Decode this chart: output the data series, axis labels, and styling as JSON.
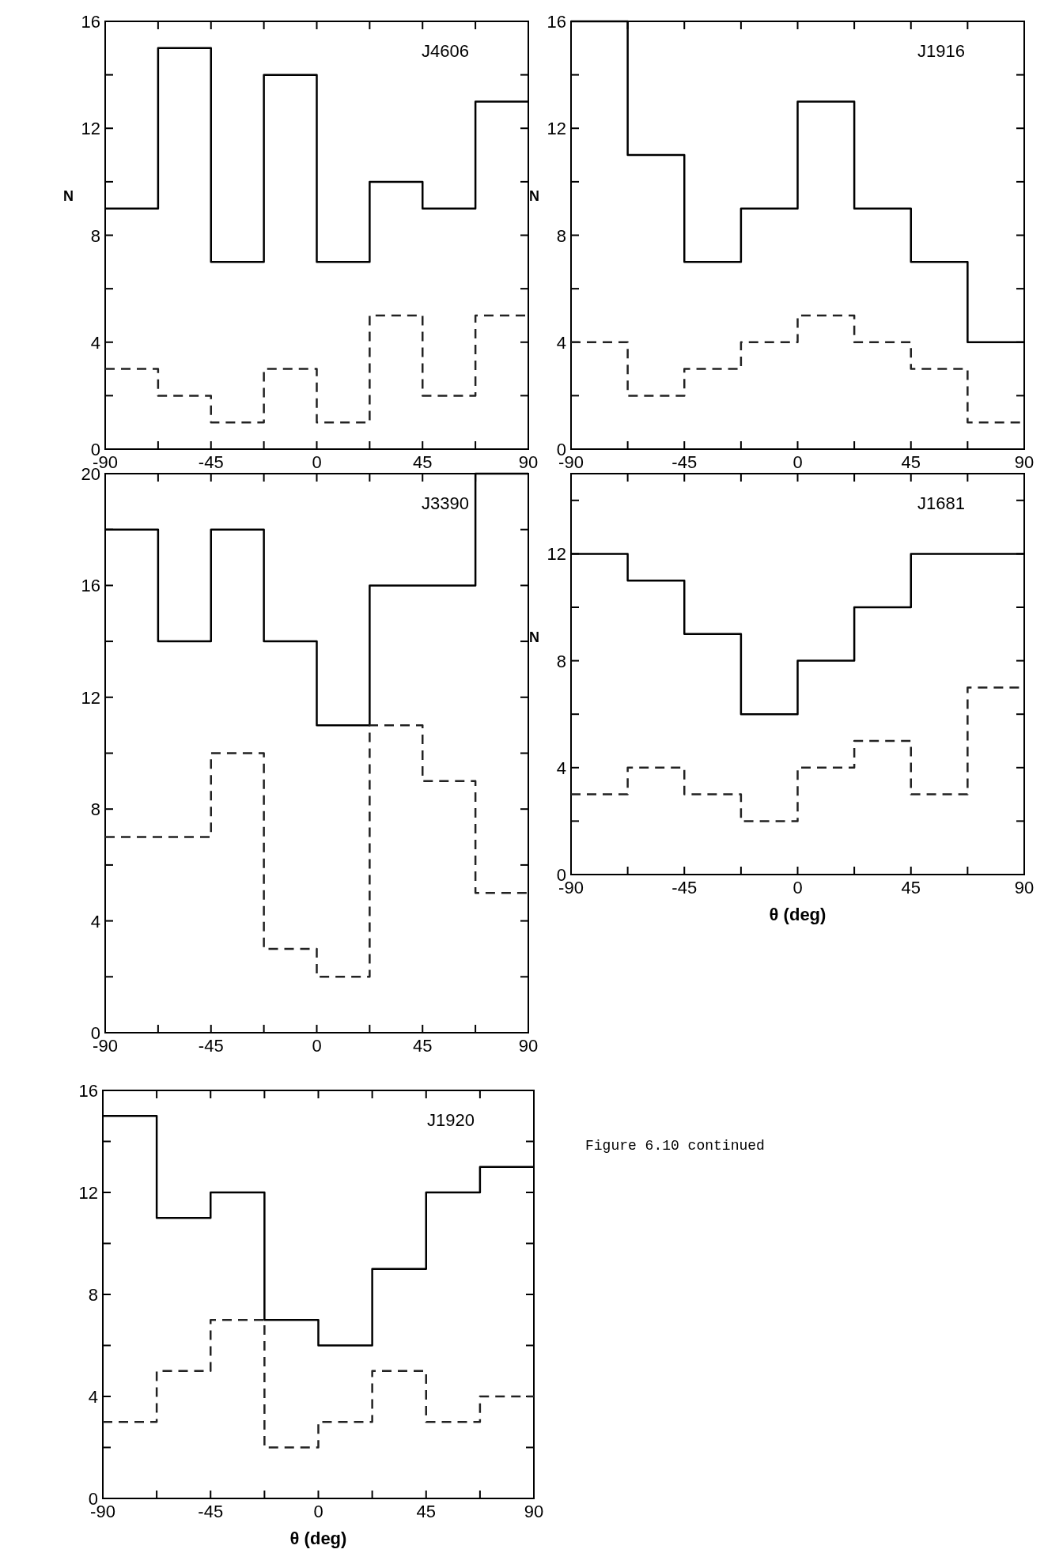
{
  "chart_data": [
    {
      "type": "histogram",
      "title": "J4606",
      "ylabel": "N",
      "bins": [
        -90,
        -67.5,
        -45,
        -22.5,
        0,
        22.5,
        45,
        67.5,
        90
      ],
      "xlim": [
        -90,
        90
      ],
      "ylim": [
        0,
        16
      ],
      "xticks": [
        -90,
        {
          "value": -67.5,
          "label": null
        },
        -45,
        {
          "value": -22.5,
          "label": null
        },
        0,
        {
          "value": 22.5,
          "label": null
        },
        45,
        {
          "value": 67.5,
          "label": null
        },
        90
      ],
      "yticks": [
        0,
        {
          "value": 2,
          "label": null
        },
        4,
        {
          "value": 6,
          "label": null
        },
        8,
        {
          "value": 10,
          "label": null
        },
        12,
        {
          "value": 14,
          "label": null
        },
        16
      ],
      "grid": false,
      "series": [
        {
          "color": "#000000",
          "line_style": "solid",
          "values": [
            9,
            15,
            7,
            14,
            7,
            10,
            9,
            13
          ]
        },
        {
          "color": "#222222",
          "line_style": "dashed",
          "values": [
            3,
            2,
            1,
            3,
            1,
            5,
            2,
            5
          ]
        }
      ]
    },
    {
      "type": "histogram",
      "title": "J1916",
      "ylabel": "N",
      "bins": [
        -90,
        -67.5,
        -45,
        -22.5,
        0,
        22.5,
        45,
        67.5,
        90
      ],
      "xlim": [
        -90,
        90
      ],
      "ylim": [
        0,
        16
      ],
      "xticks": [
        -90,
        {
          "value": -67.5,
          "label": null
        },
        -45,
        {
          "value": -22.5,
          "label": null
        },
        0,
        {
          "value": 22.5,
          "label": null
        },
        45,
        {
          "value": 67.5,
          "label": null
        },
        90
      ],
      "yticks": [
        0,
        {
          "value": 2,
          "label": null
        },
        4,
        {
          "value": 6,
          "label": null
        },
        8,
        {
          "value": 10,
          "label": null
        },
        12,
        {
          "value": 14,
          "label": null
        },
        16
      ],
      "grid": false,
      "series": [
        {
          "color": "#000000",
          "line_style": "solid",
          "values": [
            16,
            11,
            7,
            9,
            13,
            9,
            7,
            4
          ]
        },
        {
          "color": "#222222",
          "line_style": "dashed",
          "values": [
            4,
            2,
            3,
            4,
            5,
            4,
            3,
            1
          ]
        }
      ]
    },
    {
      "type": "histogram",
      "title": "J3390",
      "bins": [
        -90,
        -67.5,
        -45,
        -22.5,
        0,
        22.5,
        45,
        67.5,
        90
      ],
      "xlim": [
        -90,
        90
      ],
      "ylim": [
        0,
        20
      ],
      "xticks": [
        -90,
        {
          "value": -67.5,
          "label": null
        },
        -45,
        {
          "value": -22.5,
          "label": null
        },
        0,
        {
          "value": 22.5,
          "label": null
        },
        45,
        {
          "value": 67.5,
          "label": null
        },
        90
      ],
      "yticks": [
        0,
        {
          "value": 2,
          "label": null
        },
        4,
        {
          "value": 6,
          "label": null
        },
        8,
        {
          "value": 10,
          "label": null
        },
        12,
        {
          "value": 14,
          "label": null
        },
        16,
        {
          "value": 18,
          "label": null
        },
        20
      ],
      "grid": false,
      "series": [
        {
          "color": "#000000",
          "line_style": "solid",
          "values": [
            18,
            14,
            18,
            14,
            11,
            16,
            16,
            20
          ]
        },
        {
          "color": "#222222",
          "line_style": "dashed",
          "values": [
            7,
            7,
            10,
            3,
            2,
            11,
            9,
            5
          ]
        }
      ]
    },
    {
      "type": "histogram",
      "title": "J1681",
      "ylabel": "N",
      "xlabel": "θ (deg)",
      "bins": [
        -90,
        -67.5,
        -45,
        -22.5,
        0,
        22.5,
        45,
        67.5,
        90
      ],
      "xlim": [
        -90,
        90
      ],
      "ylim": [
        0,
        15
      ],
      "xticks": [
        -90,
        {
          "value": -67.5,
          "label": null
        },
        -45,
        {
          "value": -22.5,
          "label": null
        },
        0,
        {
          "value": 22.5,
          "label": null
        },
        45,
        {
          "value": 67.5,
          "label": null
        },
        90
      ],
      "yticks": [
        0,
        {
          "value": 2,
          "label": null
        },
        4,
        {
          "value": 6,
          "label": null
        },
        8,
        {
          "value": 10,
          "label": null
        },
        12,
        {
          "value": 14,
          "label": null
        }
      ],
      "grid": false,
      "series": [
        {
          "color": "#000000",
          "line_style": "solid",
          "values": [
            12,
            11,
            9,
            6,
            8,
            10,
            12,
            12
          ]
        },
        {
          "color": "#222222",
          "line_style": "dashed",
          "values": [
            3,
            4,
            3,
            2,
            4,
            5,
            3,
            7
          ]
        }
      ]
    },
    {
      "type": "histogram",
      "title": "J1920",
      "xlabel": "θ (deg)",
      "annotations": [
        "Figure 6.10 continued"
      ],
      "bins": [
        -90,
        -67.5,
        -45,
        -22.5,
        0,
        22.5,
        45,
        67.5,
        90
      ],
      "xlim": [
        -90,
        90
      ],
      "ylim": [
        0,
        16
      ],
      "xticks": [
        -90,
        {
          "value": -67.5,
          "label": null
        },
        -45,
        {
          "value": -22.5,
          "label": null
        },
        0,
        {
          "value": 22.5,
          "label": null
        },
        45,
        {
          "value": 67.5,
          "label": null
        },
        90
      ],
      "yticks": [
        0,
        {
          "value": 2,
          "label": null
        },
        4,
        {
          "value": 6,
          "label": null
        },
        8,
        {
          "value": 10,
          "label": null
        },
        12,
        {
          "value": 14,
          "label": null
        },
        16
      ],
      "grid": false,
      "series": [
        {
          "color": "#000000",
          "line_style": "solid",
          "values": [
            15,
            11,
            12,
            7,
            6,
            9,
            12,
            13
          ]
        },
        {
          "color": "#222222",
          "line_style": "dashed",
          "values": [
            3,
            5,
            7,
            2,
            3,
            5,
            3,
            4
          ]
        }
      ]
    }
  ]
}
